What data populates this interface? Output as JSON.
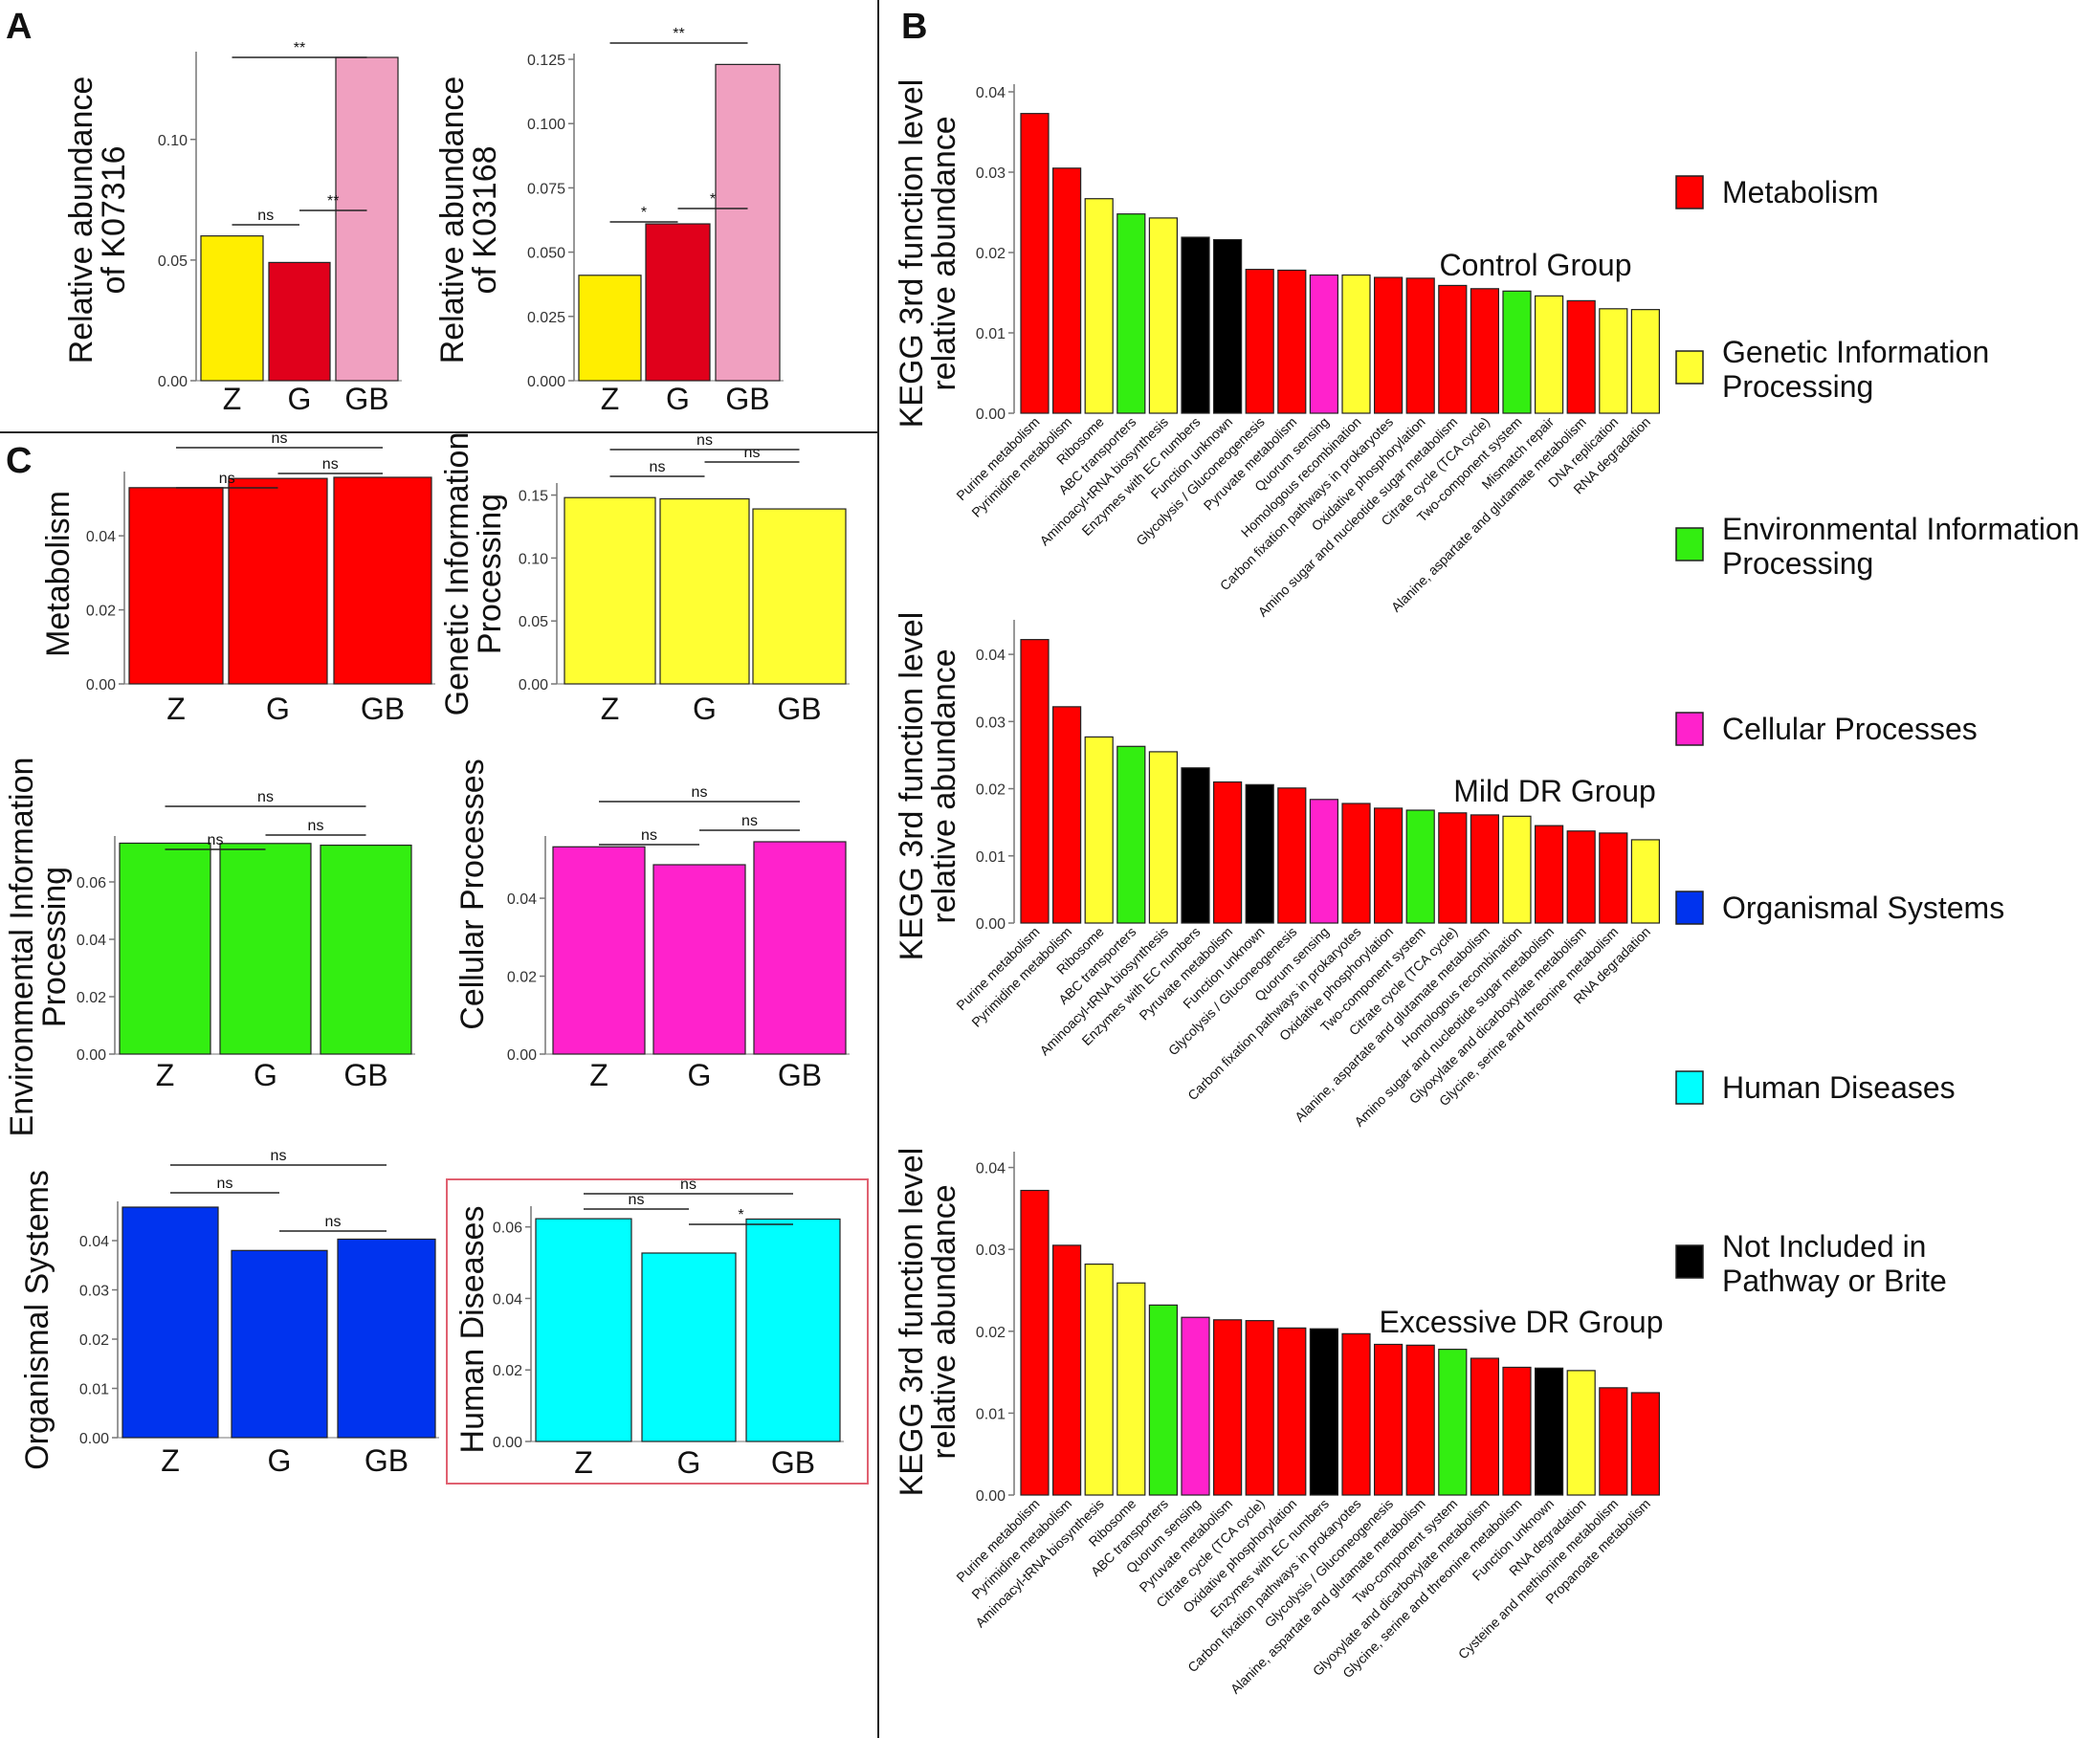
{
  "colors": {
    "Metabolism": "#ff0000",
    "Genetic Information Processing": "#ffff33",
    "Environmental Information Processing": "#33ee11",
    "Cellular Processes": "#ff22cc",
    "Organismal Systems": "#0033ee",
    "Human Diseases": "#00ffff",
    "Not Included in Pathway or Brite": "#000000",
    "Z": "#ffee00",
    "G": "#e0001b",
    "GB": "#f0a0c0"
  },
  "panel_labels": [
    "A",
    "B",
    "C"
  ],
  "legend": {
    "items": [
      {
        "key": "Metabolism",
        "lines": [
          "Metabolism"
        ]
      },
      {
        "key": "Genetic Information Processing",
        "lines": [
          "Genetic Information",
          "Processing"
        ]
      },
      {
        "key": "Environmental Information Processing",
        "lines": [
          "Environmental Information",
          "Processing"
        ]
      },
      {
        "key": "Cellular Processes",
        "lines": [
          "Cellular Processes"
        ]
      },
      {
        "key": "Organismal Systems",
        "lines": [
          "Organismal Systems"
        ]
      },
      {
        "key": "Human Diseases",
        "lines": [
          "Human Diseases"
        ]
      },
      {
        "key": "Not Included in Pathway or Brite",
        "lines": [
          "Not Included in",
          "Pathway or Brite"
        ]
      }
    ]
  },
  "chart_data": [
    {
      "id": "A1",
      "type": "bar",
      "panel": "A",
      "categories": [
        "Z",
        "G",
        "GB"
      ],
      "values": [
        0.06,
        0.049,
        0.134
      ],
      "ylabel": [
        "Relative abundance",
        "of K07316"
      ],
      "ylim": [
        0,
        0.134
      ],
      "yticks": [
        0,
        0.05,
        0.1
      ],
      "ytick_labels": [
        "0.00",
        "0.05",
        "0.10"
      ],
      "colors": [
        "Z",
        "G",
        "GB"
      ],
      "comparisons": [
        {
          "a": 0,
          "b": 1,
          "label": "ns"
        },
        {
          "a": 1,
          "b": 2,
          "label": "**"
        },
        {
          "a": 0,
          "b": 2,
          "label": "**"
        }
      ]
    },
    {
      "id": "A2",
      "type": "bar",
      "panel": "A",
      "categories": [
        "Z",
        "G",
        "GB"
      ],
      "values": [
        0.041,
        0.061,
        0.123
      ],
      "ylabel": [
        "Relative abundance",
        "of K03168"
      ],
      "ylim": [
        0,
        0.125
      ],
      "yticks": [
        0,
        0.025,
        0.05,
        0.075,
        0.1,
        0.125
      ],
      "ytick_labels": [
        "0.000",
        "0.025",
        "0.050",
        "0.075",
        "0.100",
        "0.125"
      ],
      "colors": [
        "Z",
        "G",
        "GB"
      ],
      "comparisons": [
        {
          "a": 0,
          "b": 1,
          "label": "*"
        },
        {
          "a": 1,
          "b": 2,
          "label": "*"
        },
        {
          "a": 0,
          "b": 2,
          "label": "**"
        }
      ]
    },
    {
      "id": "C1",
      "type": "bar",
      "panel": "C",
      "categories": [
        "Z",
        "G",
        "GB"
      ],
      "values": [
        0.053,
        0.0555,
        0.0558
      ],
      "ylabel": [
        "Metabolism"
      ],
      "ylim": [
        0,
        0.0558
      ],
      "yticks": [
        0,
        0.02,
        0.04
      ],
      "ytick_labels": [
        "0.00",
        "0.02",
        "0.04"
      ],
      "colors": [
        "Metabolism",
        "Metabolism",
        "Metabolism"
      ],
      "comparisons": [
        {
          "a": 0,
          "b": 1,
          "label": "ns"
        },
        {
          "a": 1,
          "b": 2,
          "label": "ns"
        },
        {
          "a": 0,
          "b": 2,
          "label": "ns"
        }
      ]
    },
    {
      "id": "C2",
      "type": "bar",
      "panel": "C",
      "categories": [
        "Z",
        "G",
        "GB"
      ],
      "values": [
        0.148,
        0.147,
        0.139
      ],
      "ylabel": [
        "Genetic Information",
        "Processing"
      ],
      "ylim": [
        0,
        0.155
      ],
      "yticks": [
        0,
        0.05,
        0.1,
        0.15
      ],
      "ytick_labels": [
        "0.00",
        "0.05",
        "0.10",
        "0.15"
      ],
      "colors": [
        "Genetic Information Processing",
        "Genetic Information Processing",
        "Genetic Information Processing"
      ],
      "comparisons": [
        {
          "a": 0,
          "b": 1,
          "label": "ns"
        },
        {
          "a": 1,
          "b": 2,
          "label": "ns"
        },
        {
          "a": 0,
          "b": 2,
          "label": "ns"
        }
      ]
    },
    {
      "id": "C3",
      "type": "bar",
      "panel": "C",
      "categories": [
        "Z",
        "G",
        "GB"
      ],
      "values": [
        0.0735,
        0.0734,
        0.0728
      ],
      "ylabel": [
        "Environmental Information",
        "Processing"
      ],
      "ylim": [
        0,
        0.074
      ],
      "yticks": [
        0,
        0.02,
        0.04,
        0.06
      ],
      "ytick_labels": [
        "0.00",
        "0.02",
        "0.04",
        "0.06"
      ],
      "colors": [
        "Environmental Information Processing",
        "Environmental Information Processing",
        "Environmental Information Processing"
      ],
      "comparisons": [
        {
          "a": 0,
          "b": 1,
          "label": "ns"
        },
        {
          "a": 1,
          "b": 2,
          "label": "ns"
        },
        {
          "a": 0,
          "b": 2,
          "label": "ns"
        }
      ]
    },
    {
      "id": "C4",
      "type": "bar",
      "panel": "C",
      "categories": [
        "Z",
        "G",
        "GB"
      ],
      "values": [
        0.0532,
        0.0486,
        0.0545
      ],
      "ylabel": [
        "Cellular Processes"
      ],
      "ylim": [
        0,
        0.0545
      ],
      "yticks": [
        0,
        0.02,
        0.04
      ],
      "ytick_labels": [
        "0.00",
        "0.02",
        "0.04"
      ],
      "colors": [
        "Cellular Processes",
        "Cellular Processes",
        "Cellular Processes"
      ],
      "comparisons": [
        {
          "a": 0,
          "b": 1,
          "label": "ns"
        },
        {
          "a": 1,
          "b": 2,
          "label": "ns"
        },
        {
          "a": 0,
          "b": 2,
          "label": "ns"
        }
      ]
    },
    {
      "id": "C5",
      "type": "bar",
      "panel": "C",
      "categories": [
        "Z",
        "G",
        "GB"
      ],
      "values": [
        0.0468,
        0.038,
        0.0403
      ],
      "ylabel": [
        "Organismal Systems"
      ],
      "ylim": [
        0,
        0.0468
      ],
      "yticks": [
        0,
        0.01,
        0.02,
        0.03,
        0.04
      ],
      "ytick_labels": [
        "0.00",
        "0.01",
        "0.02",
        "0.03",
        "0.04"
      ],
      "colors": [
        "Organismal Systems",
        "Organismal Systems",
        "Organismal Systems"
      ],
      "comparisons": [
        {
          "a": 0,
          "b": 1,
          "label": "ns"
        },
        {
          "a": 1,
          "b": 2,
          "label": "ns"
        },
        {
          "a": 0,
          "b": 2,
          "label": "ns"
        }
      ]
    },
    {
      "id": "C6",
      "type": "bar",
      "panel": "C",
      "categories": [
        "Z",
        "G",
        "GB"
      ],
      "values": [
        0.0623,
        0.0527,
        0.0622
      ],
      "ylabel": [
        "Human Diseases"
      ],
      "ylim": [
        0,
        0.0642
      ],
      "yticks": [
        0,
        0.02,
        0.04,
        0.06
      ],
      "ytick_labels": [
        "0.00",
        "0.02",
        "0.04",
        "0.06"
      ],
      "colors": [
        "Human Diseases",
        "Human Diseases",
        "Human Diseases"
      ],
      "highlight": true,
      "comparisons": [
        {
          "a": 0,
          "b": 1,
          "label": "ns"
        },
        {
          "a": 1,
          "b": 2,
          "label": "*"
        },
        {
          "a": 0,
          "b": 2,
          "label": "ns"
        }
      ]
    },
    {
      "id": "B1",
      "type": "bar",
      "panel": "B",
      "title": "Control Group",
      "ylabel": [
        "KEGG 3rd function level",
        "relative abundance"
      ],
      "ylim": [
        0,
        0.04
      ],
      "yticks": [
        0,
        0.01,
        0.02,
        0.03,
        0.04
      ],
      "ytick_labels": [
        "0.00",
        "0.01",
        "0.02",
        "0.03",
        "0.04"
      ],
      "categories": [
        "Purine metabolism",
        "Pyrimidine metabolism",
        "Ribosome",
        "ABC transporters",
        "Aminoacyl-tRNA biosynthesis",
        "Enzymes with EC numbers",
        "Function unknown",
        "Glycolysis / Gluconeogenesis",
        "Pyruvate metabolism",
        "Quorum sensing",
        "Homologous recombination",
        "Carbon fixation pathways in prokaryotes",
        "Oxidative phosphorylation",
        "Amino sugar and nucleotide sugar metabolism",
        "Citrate cycle (TCA cycle)",
        "Two-component system",
        "Mismatch repair",
        "Alanine, aspartate and glutamate metabolism",
        "DNA replication",
        "RNA degradation"
      ],
      "values": [
        0.0373,
        0.0305,
        0.0267,
        0.0248,
        0.0243,
        0.0219,
        0.0216,
        0.0179,
        0.0178,
        0.0172,
        0.0172,
        0.0169,
        0.0168,
        0.0159,
        0.0155,
        0.0152,
        0.0146,
        0.014,
        0.013,
        0.0129
      ],
      "colors": [
        "Metabolism",
        "Metabolism",
        "Genetic Information Processing",
        "Environmental Information Processing",
        "Genetic Information Processing",
        "Not Included in Pathway or Brite",
        "Not Included in Pathway or Brite",
        "Metabolism",
        "Metabolism",
        "Cellular Processes",
        "Genetic Information Processing",
        "Metabolism",
        "Metabolism",
        "Metabolism",
        "Metabolism",
        "Environmental Information Processing",
        "Genetic Information Processing",
        "Metabolism",
        "Genetic Information Processing",
        "Genetic Information Processing"
      ]
    },
    {
      "id": "B2",
      "type": "bar",
      "panel": "B",
      "title": "Mild DR Group",
      "ylabel": [
        "KEGG 3rd function level",
        "relative abundance"
      ],
      "ylim": [
        0,
        0.044
      ],
      "yticks": [
        0,
        0.01,
        0.02,
        0.03,
        0.04
      ],
      "ytick_labels": [
        "0.00",
        "0.01",
        "0.02",
        "0.03",
        "0.04"
      ],
      "categories": [
        "Purine metabolism",
        "Pyrimidine metabolism",
        "Ribosome",
        "ABC transporters",
        "Aminoacyl-tRNA biosynthesis",
        "Enzymes with EC numbers",
        "Pyruvate metabolism",
        "Function unknown",
        "Glycolysis / Gluconeogenesis",
        "Quorum sensing",
        "Carbon fixation pathways in prokaryotes",
        "Oxidative phosphorylation",
        "Two-component system",
        "Citrate cycle (TCA cycle)",
        "Alanine, aspartate and glutamate metabolism",
        "Homologous recombination",
        "Amino sugar and nucleotide sugar metabolism",
        "Glyoxylate and dicarboxylate metabolism",
        "Glycine, serine and threonine metabolism",
        "RNA degradation"
      ],
      "values": [
        0.0422,
        0.0322,
        0.0277,
        0.0263,
        0.0255,
        0.0231,
        0.021,
        0.0206,
        0.0201,
        0.0184,
        0.0178,
        0.0171,
        0.0168,
        0.0164,
        0.0161,
        0.0159,
        0.0145,
        0.0137,
        0.0134,
        0.0124
      ],
      "colors": [
        "Metabolism",
        "Metabolism",
        "Genetic Information Processing",
        "Environmental Information Processing",
        "Genetic Information Processing",
        "Not Included in Pathway or Brite",
        "Metabolism",
        "Not Included in Pathway or Brite",
        "Metabolism",
        "Cellular Processes",
        "Metabolism",
        "Metabolism",
        "Environmental Information Processing",
        "Metabolism",
        "Metabolism",
        "Genetic Information Processing",
        "Metabolism",
        "Metabolism",
        "Metabolism",
        "Genetic Information Processing"
      ]
    },
    {
      "id": "B3",
      "type": "bar",
      "panel": "B",
      "title": "Excessive DR Group",
      "ylabel": [
        "KEGG 3rd function level",
        "relative abundance"
      ],
      "ylim": [
        0,
        0.041
      ],
      "yticks": [
        0,
        0.01,
        0.02,
        0.03,
        0.04
      ],
      "ytick_labels": [
        "0.00",
        "0.01",
        "0.02",
        "0.03",
        "0.04"
      ],
      "categories": [
        "Purine metabolism",
        "Pyrimidine metabolism",
        "Aminoacyl-tRNA biosynthesis",
        "Ribosome",
        "ABC transporters",
        "Quorum sensing",
        "Pyruvate metabolism",
        "Citrate cycle (TCA cycle)",
        "Oxidative phosphorylation",
        "Enzymes with EC numbers",
        "Carbon fixation pathways in prokaryotes",
        "Glycolysis / Gluconeogenesis",
        "Alanine, aspartate and glutamate metabolism",
        "Two-component system",
        "Glyoxylate and dicarboxylate metabolism",
        "Glycine, serine and threonine metabolism",
        "Function unknown",
        "RNA degradation",
        "Cysteine and methionine metabolism",
        "Propanoate metabolism"
      ],
      "values": [
        0.0372,
        0.0305,
        0.0282,
        0.0259,
        0.0232,
        0.0217,
        0.0214,
        0.0213,
        0.0204,
        0.0203,
        0.0197,
        0.0184,
        0.0183,
        0.0178,
        0.0167,
        0.0156,
        0.0155,
        0.0152,
        0.0131,
        0.0125
      ],
      "colors": [
        "Metabolism",
        "Metabolism",
        "Genetic Information Processing",
        "Genetic Information Processing",
        "Environmental Information Processing",
        "Cellular Processes",
        "Metabolism",
        "Metabolism",
        "Metabolism",
        "Not Included in Pathway or Brite",
        "Metabolism",
        "Metabolism",
        "Metabolism",
        "Environmental Information Processing",
        "Metabolism",
        "Metabolism",
        "Not Included in Pathway or Brite",
        "Genetic Information Processing",
        "Metabolism",
        "Metabolism"
      ]
    }
  ]
}
